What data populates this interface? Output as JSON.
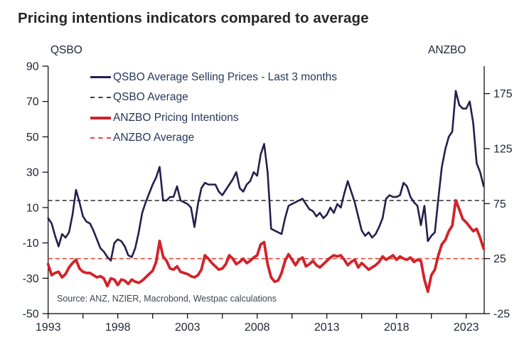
{
  "title": "Pricing intentions indicators compared to average",
  "source": "Source: ANZ, NZIER, Macrobond, Westpac calculations",
  "left_axis_header": "QSBO",
  "right_axis_header": "ANZBO",
  "legend": {
    "items": [
      {
        "label": "QSBO Average Selling Prices - Last 3 months",
        "style": "solid",
        "color": "#241f4c"
      },
      {
        "label": "QSBO Average",
        "style": "dashed",
        "color": "#3f3f3f"
      },
      {
        "label": "ANZBO Pricing Intentions",
        "style": "solid",
        "color": "#d2232a"
      },
      {
        "label": "ANZBO Average",
        "style": "dashed",
        "color": "#e8453c"
      }
    ]
  },
  "colors": {
    "qsbo_line": "#241f4c",
    "qsbo_average_line": "#3f3f3f",
    "anzbo_line": "#d2232a",
    "anzbo_average_line": "#e8453c",
    "axis": "#000000",
    "tick_text": "#1d2433",
    "title_text": "#262626"
  },
  "chart_data": {
    "type": "line",
    "title": "Pricing intentions indicators compared to average",
    "x": {
      "start": 1993,
      "step": 0.25,
      "end": 2024.25,
      "tick_labels": [
        "1993",
        "1998",
        "2003",
        "2008",
        "2013",
        "2018",
        "2023"
      ],
      "tick_years": [
        1993,
        1998,
        2003,
        2008,
        2013,
        2018,
        2023
      ],
      "minor_tick_years": [
        1995.5,
        2000.5,
        2005.5,
        2010.5,
        2015.5,
        2020.5
      ]
    },
    "left_axis": {
      "label": "QSBO",
      "min": -50,
      "max": 90,
      "ticks": [
        90,
        70,
        50,
        30,
        10,
        -10,
        -30,
        -50
      ]
    },
    "right_axis": {
      "label": "ANZBO",
      "min": -25,
      "max": 200,
      "ticks": [
        175,
        125,
        75,
        25,
        -25
      ]
    },
    "series": [
      {
        "name": "QSBO Average Selling Prices - Last 3 months",
        "axis": "left",
        "style": "solid",
        "color": "#241f4c",
        "values": [
          4,
          1,
          -6,
          -12,
          -5,
          -7,
          -4,
          6,
          20,
          13,
          5,
          2,
          1,
          -3,
          -8,
          -13,
          -15,
          -18,
          -20,
          -10,
          -8,
          -9,
          -12,
          -17,
          -18,
          -13,
          -4,
          7,
          13,
          18,
          23,
          27,
          33,
          14,
          14,
          16,
          16,
          22,
          14,
          13,
          12,
          10,
          -1,
          12,
          21,
          24,
          23,
          23,
          23,
          19,
          17,
          20,
          23,
          26,
          30,
          21,
          19,
          23,
          25,
          30,
          28,
          40,
          46,
          30,
          -2,
          -3,
          -4,
          -5,
          4,
          11,
          12,
          13,
          14,
          15,
          12,
          9,
          8,
          5,
          7,
          4,
          6,
          10,
          7,
          12,
          10,
          18,
          25,
          19,
          13,
          5,
          -3,
          -6,
          -4,
          -7,
          -5,
          -1,
          4,
          15,
          17,
          16,
          16,
          17,
          24,
          22,
          16,
          13,
          11,
          0,
          11,
          -9,
          -6,
          -4,
          15,
          33,
          43,
          50,
          53,
          76,
          68,
          66,
          66,
          70,
          58,
          35,
          30,
          22
        ]
      },
      {
        "name": "QSBO Average",
        "axis": "left",
        "style": "dashed",
        "color": "#3f3f3f",
        "value": 14
      },
      {
        "name": "ANZBO Pricing Intentions",
        "axis": "right",
        "style": "solid",
        "color": "#d2232a",
        "values": [
          20,
          10,
          12,
          13,
          8,
          11,
          17,
          21,
          24,
          16,
          13,
          12,
          12,
          10,
          8,
          9,
          7,
          0,
          7,
          6,
          1,
          6,
          5,
          2,
          6,
          4,
          3,
          5,
          8,
          11,
          14,
          22,
          41,
          27,
          23,
          16,
          15,
          18,
          13,
          12,
          11,
          9,
          8,
          10,
          15,
          28,
          25,
          21,
          18,
          15,
          16,
          20,
          28,
          25,
          20,
          22,
          25,
          21,
          23,
          26,
          28,
          38,
          40,
          20,
          8,
          4,
          5,
          12,
          23,
          29,
          24,
          19,
          24,
          26,
          18,
          20,
          23,
          19,
          17,
          20,
          23,
          26,
          28,
          27,
          28,
          24,
          19,
          22,
          24,
          17,
          21,
          18,
          15,
          17,
          19,
          22,
          27,
          24,
          26,
          28,
          24,
          27,
          25,
          24,
          26,
          22,
          24,
          23,
          6,
          -5,
          10,
          15,
          28,
          38,
          42,
          50,
          55,
          78,
          70,
          61,
          58,
          54,
          50,
          52,
          44,
          34
        ]
      },
      {
        "name": "ANZBO Average",
        "axis": "right",
        "style": "dashed",
        "color": "#e8453c",
        "value": 25
      }
    ]
  }
}
